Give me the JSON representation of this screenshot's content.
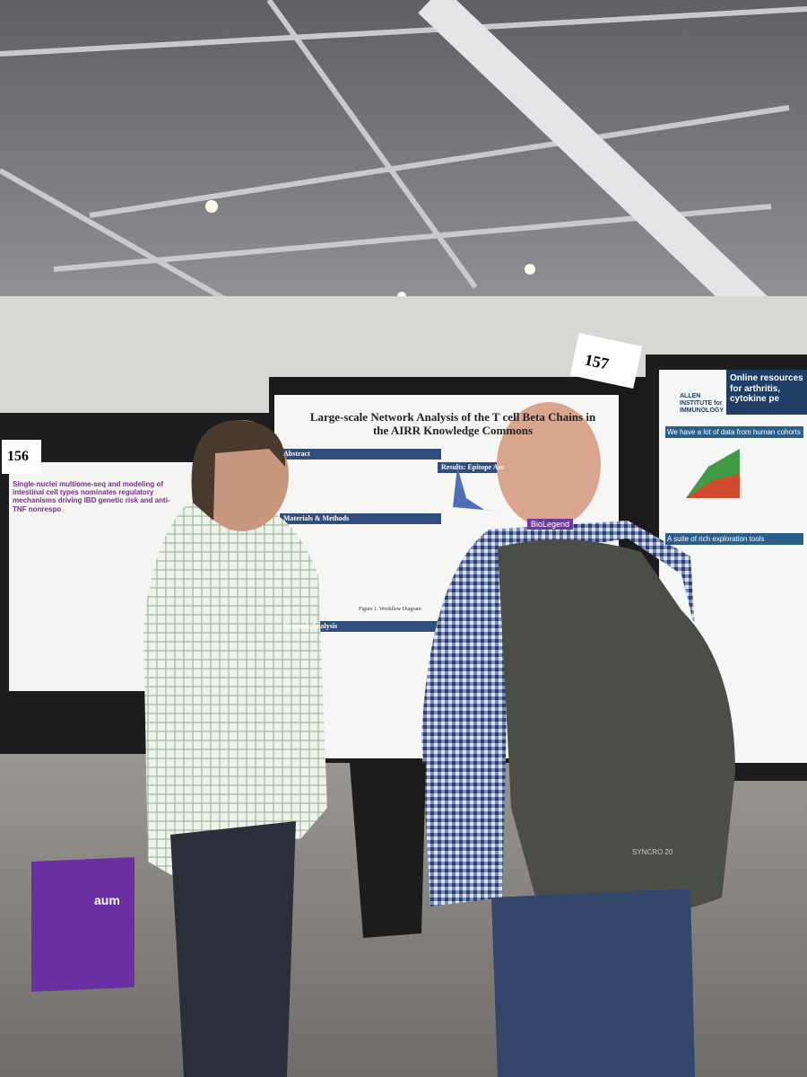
{
  "posters": [
    {
      "number": "156",
      "title": "Single-nuclei multiome-seq and modeling of intestinal cell types nominates regulatory mechanisms driving IBD genetic risk and anti-TNF nonrespo"
    },
    {
      "number": "157",
      "title": "Large-scale Network Analysis of the T cell Beta Chains in the AIRR Knowledge Commons",
      "sections": [
        "Abstract",
        "Materials & Methods",
        "Results: Epitope Ass",
        "Network Analysis",
        "Figure 1. Workflow Diagram"
      ]
    },
    {
      "title": "Online resources for arthritis, cytokine pe",
      "institute": "ALLEN INSTITUTE for IMMUNOLOGY",
      "sections": [
        "We have a lot of data from human cohorts",
        "A suite of rich exploration tools"
      ]
    }
  ],
  "badge": "BioLegend",
  "backpack": "SYNCRO 20",
  "bag": "aum"
}
